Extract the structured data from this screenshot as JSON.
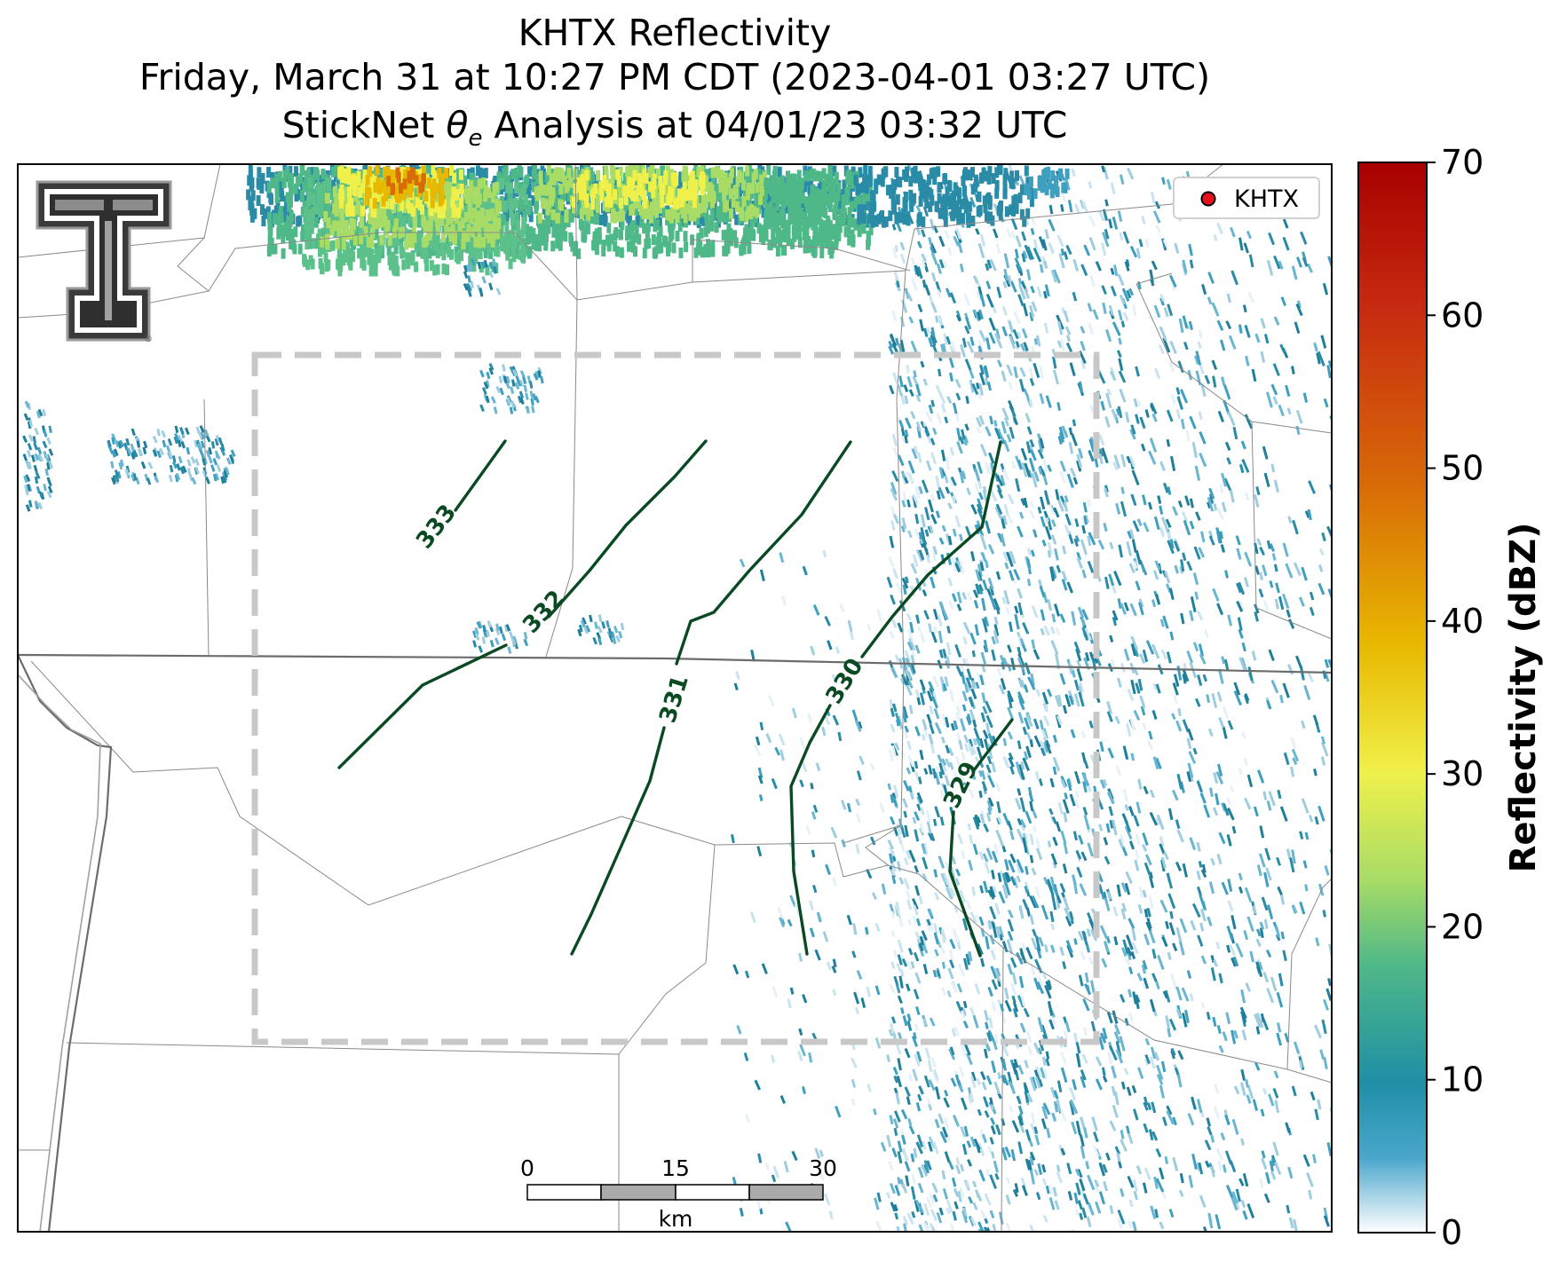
{
  "title": {
    "line1": "KHTX Reflectivity",
    "line2": "Friday, March 31 at 10:27 PM CDT (2023-04-01 03:27 UTC)",
    "line3_prefix": "StickNet ",
    "line3_symbol": "θ",
    "line3_subscript": "e",
    "line3_suffix": " Analysis at 04/01/23 03:32 UTC"
  },
  "legend": {
    "label": "KHTX",
    "marker_color": "#e8101a"
  },
  "contours": [
    {
      "label": "333"
    },
    {
      "label": "332"
    },
    {
      "label": "331"
    },
    {
      "label": "330"
    },
    {
      "label": "329"
    }
  ],
  "contour_color": "#0a4a22",
  "colorbar": {
    "label": "Reflectivity (dBZ)",
    "min": 0,
    "max": 70,
    "ticks": [
      "0",
      "10",
      "20",
      "30",
      "40",
      "50",
      "60",
      "70"
    ]
  },
  "scale_bar": {
    "ticks": [
      "0",
      "15",
      "30"
    ],
    "unit": "km"
  },
  "logo": {
    "name": "texas-tech-double-t-logo"
  }
}
